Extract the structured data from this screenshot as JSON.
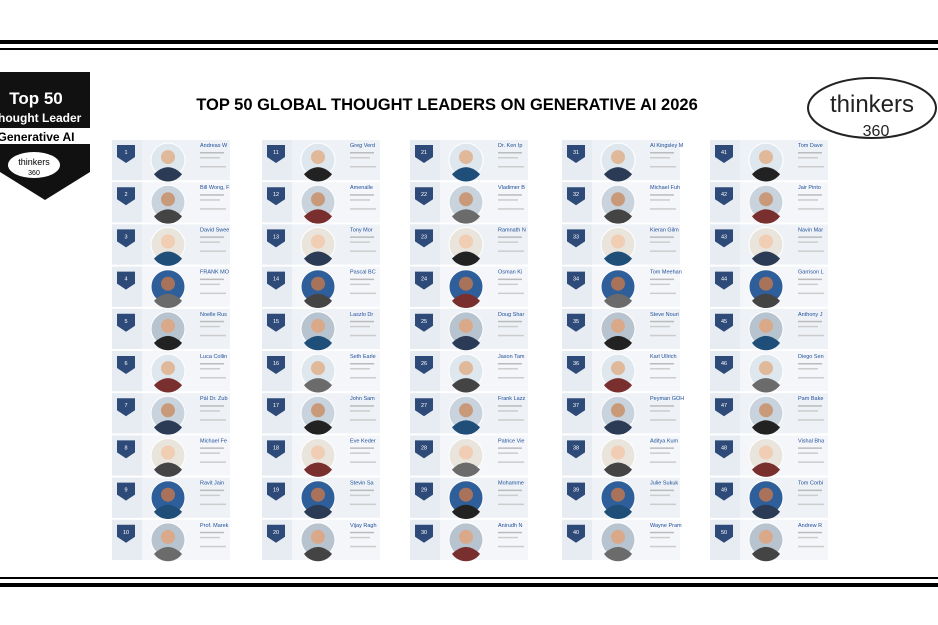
{
  "badge": {
    "line1": "Top 50",
    "line2": "Thought Leader",
    "line3": "Generative AI",
    "brand": "thinkers",
    "brand_num": "360"
  },
  "title": "TOP 50 GLOBAL THOUGHT LEADERS ON GENERATIVE AI 2026",
  "logo": {
    "brand": "thinkers",
    "brand_num": "360"
  },
  "leaders": [
    {
      "rank": 1,
      "name": "Andreas W"
    },
    {
      "rank": 2,
      "name": "Bill Wong, F"
    },
    {
      "rank": 3,
      "name": "David Swee"
    },
    {
      "rank": 4,
      "name": "FRANK MO"
    },
    {
      "rank": 5,
      "name": "Noelle Rus"
    },
    {
      "rank": 6,
      "name": "Luca Collin"
    },
    {
      "rank": 7,
      "name": "Pál Dr. Zub"
    },
    {
      "rank": 8,
      "name": "Michael Fe"
    },
    {
      "rank": 9,
      "name": "Ravit Jain"
    },
    {
      "rank": 10,
      "name": "Prof. Marek"
    },
    {
      "rank": 11,
      "name": "Greg Verd"
    },
    {
      "rank": 12,
      "name": "Amenalle"
    },
    {
      "rank": 13,
      "name": "Tony Mor"
    },
    {
      "rank": 14,
      "name": "Pascal BC"
    },
    {
      "rank": 15,
      "name": "Laszlo Dr"
    },
    {
      "rank": 16,
      "name": "Seth Earle"
    },
    {
      "rank": 17,
      "name": "John Sam"
    },
    {
      "rank": 18,
      "name": "Eve Keder"
    },
    {
      "rank": 19,
      "name": "Stevin Sa"
    },
    {
      "rank": 20,
      "name": "Vijay Ragh"
    },
    {
      "rank": 21,
      "name": "Dr. Ken Ip"
    },
    {
      "rank": 22,
      "name": "Vladimer B"
    },
    {
      "rank": 23,
      "name": "Ramnath N"
    },
    {
      "rank": 24,
      "name": "Osman Ki"
    },
    {
      "rank": 25,
      "name": "Doug Shar"
    },
    {
      "rank": 26,
      "name": "Jason Tam"
    },
    {
      "rank": 27,
      "name": "Frank Lazz"
    },
    {
      "rank": 28,
      "name": "Patrice Vie"
    },
    {
      "rank": 29,
      "name": "Mohamme"
    },
    {
      "rank": 30,
      "name": "Anirudh N"
    },
    {
      "rank": 31,
      "name": "Al Kingsley M"
    },
    {
      "rank": 32,
      "name": "Michael Fuh"
    },
    {
      "rank": 33,
      "name": "Kieran Gilm"
    },
    {
      "rank": 34,
      "name": "Tom Meehan"
    },
    {
      "rank": 35,
      "name": "Steve Nouri"
    },
    {
      "rank": 36,
      "name": "Karl Ullrich"
    },
    {
      "rank": 37,
      "name": "Peyman GOH"
    },
    {
      "rank": 38,
      "name": "Aditya Kum"
    },
    {
      "rank": 39,
      "name": "Julie Sukuk"
    },
    {
      "rank": 40,
      "name": "Wayne Pram"
    },
    {
      "rank": 41,
      "name": "Tom Dave"
    },
    {
      "rank": 42,
      "name": "Jair Pinto"
    },
    {
      "rank": 43,
      "name": "Navin Mar"
    },
    {
      "rank": 44,
      "name": "Garrison L"
    },
    {
      "rank": 45,
      "name": "Anthony J"
    },
    {
      "rank": 46,
      "name": "Diego Sen"
    },
    {
      "rank": 47,
      "name": "Pam Bake"
    },
    {
      "rank": 48,
      "name": "Vishal Bha"
    },
    {
      "rank": 49,
      "name": "Tom Corbi"
    },
    {
      "rank": 50,
      "name": "Andrew R"
    }
  ]
}
